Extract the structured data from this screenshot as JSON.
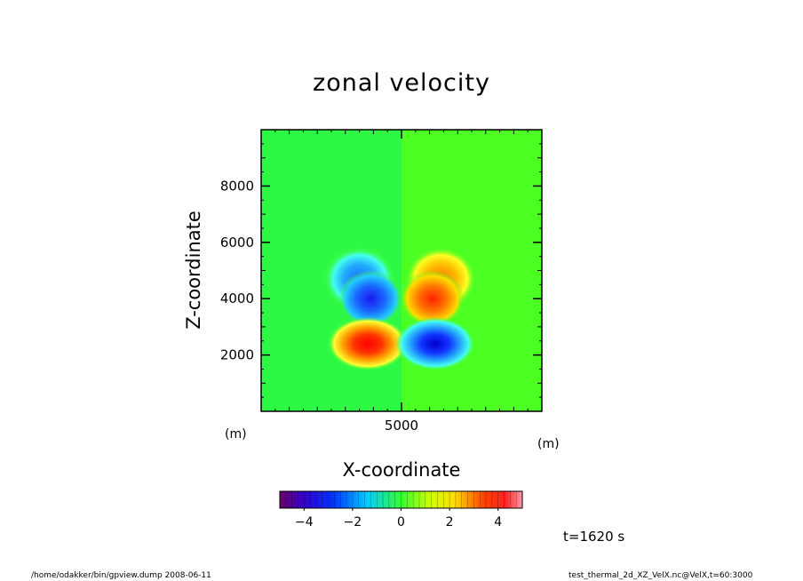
{
  "chart_data": {
    "type": "heatmap",
    "title": "zonal velocity",
    "xlabel": "X-coordinate",
    "ylabel": "Z-coordinate",
    "xunit": "(m)",
    "yunit": "(m)",
    "xlim": [
      0,
      10000
    ],
    "ylim": [
      0,
      10000
    ],
    "xticks": [
      5000
    ],
    "yticks": [
      2000,
      4000,
      6000,
      8000
    ],
    "colorbar": {
      "range": [
        -5,
        5
      ],
      "ticks": [
        -4,
        -2,
        0,
        2,
        4
      ],
      "tick_labels": [
        "−4",
        "−2",
        "0",
        "2",
        "4"
      ],
      "colormap": "rainbow (purple-blue-cyan-green-yellow-red-pink)"
    },
    "features": [
      {
        "x": 3500,
        "z": 4700,
        "value": -3,
        "sign": "negative"
      },
      {
        "x": 3900,
        "z": 4000,
        "value": -4,
        "sign": "negative"
      },
      {
        "x": 6400,
        "z": 4700,
        "value": 3,
        "sign": "positive"
      },
      {
        "x": 6100,
        "z": 4000,
        "value": 4,
        "sign": "positive"
      },
      {
        "x": 3800,
        "z": 2400,
        "value": 5,
        "sign": "positive"
      },
      {
        "x": 6200,
        "z": 2400,
        "value": -5,
        "sign": "negative"
      }
    ],
    "time_label": "t=1620 s"
  },
  "footer": {
    "left": "/home/odakker/bin/gpview.dump  2008-06-11",
    "right": "test_thermal_2d_XZ_VelX.nc@VelX,t=60:3000"
  }
}
